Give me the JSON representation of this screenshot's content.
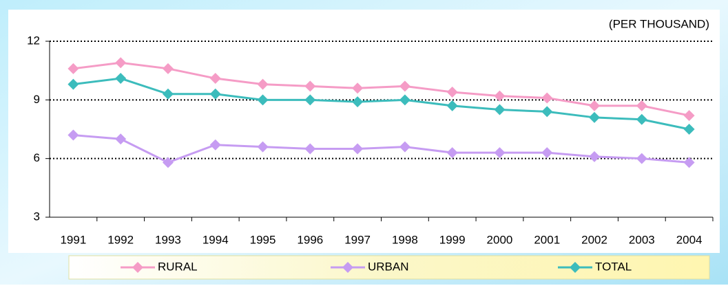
{
  "chart_data": {
    "type": "line",
    "subtitle": "(PER THOUSAND)",
    "categories": [
      "1991",
      "1992",
      "1993",
      "1994",
      "1995",
      "1996",
      "1997",
      "1998",
      "1999",
      "2000",
      "2001",
      "2002",
      "2003",
      "2004"
    ],
    "series": [
      {
        "name": "RURAL",
        "color": "#f59cc6",
        "values": [
          10.6,
          10.9,
          10.6,
          10.1,
          9.8,
          9.7,
          9.6,
          9.7,
          9.4,
          9.2,
          9.1,
          8.7,
          8.7,
          8.2
        ]
      },
      {
        "name": "URBAN",
        "color": "#c69cf2",
        "values": [
          7.2,
          7.0,
          5.8,
          6.7,
          6.6,
          6.5,
          6.5,
          6.6,
          6.3,
          6.3,
          6.3,
          6.1,
          6.0,
          5.8
        ]
      },
      {
        "name": "TOTAL",
        "color": "#3cbcbc",
        "values": [
          9.8,
          10.1,
          9.3,
          9.3,
          9.0,
          9.0,
          8.9,
          9.0,
          8.7,
          8.5,
          8.4,
          8.1,
          8.0,
          7.5
        ]
      }
    ],
    "ylim": [
      3,
      12
    ],
    "yticks": [
      3,
      6,
      9,
      12
    ],
    "grid": true,
    "legend": "bottom"
  }
}
